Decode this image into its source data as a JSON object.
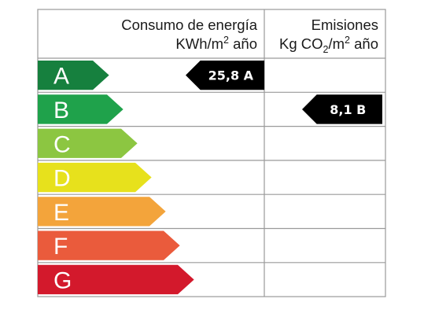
{
  "header": {
    "consumo_line1": "Consumo de energía",
    "consumo_line2_pre": "KWh/m",
    "consumo_line2_sup": "2",
    "consumo_line2_post": " año",
    "emisiones_line1": "Emisiones",
    "emisiones_line2_pre": "Kg CO",
    "emisiones_line2_sub": "2",
    "emisiones_line2_mid": "/m",
    "emisiones_line2_sup": "2",
    "emisiones_line2_post": " año"
  },
  "ratings": [
    {
      "letter": "A",
      "color": "#16803e"
    },
    {
      "letter": "B",
      "color": "#1fa24b"
    },
    {
      "letter": "C",
      "color": "#8cc641"
    },
    {
      "letter": "D",
      "color": "#e7e11c"
    },
    {
      "letter": "E",
      "color": "#f3a43b"
    },
    {
      "letter": "F",
      "color": "#ea5b3c"
    },
    {
      "letter": "G",
      "color": "#d3192c"
    }
  ],
  "consumo_indicator": {
    "text": "25,8 A",
    "rating": "A"
  },
  "emisiones_indicator": {
    "text": "8,1 B",
    "rating": "B"
  }
}
